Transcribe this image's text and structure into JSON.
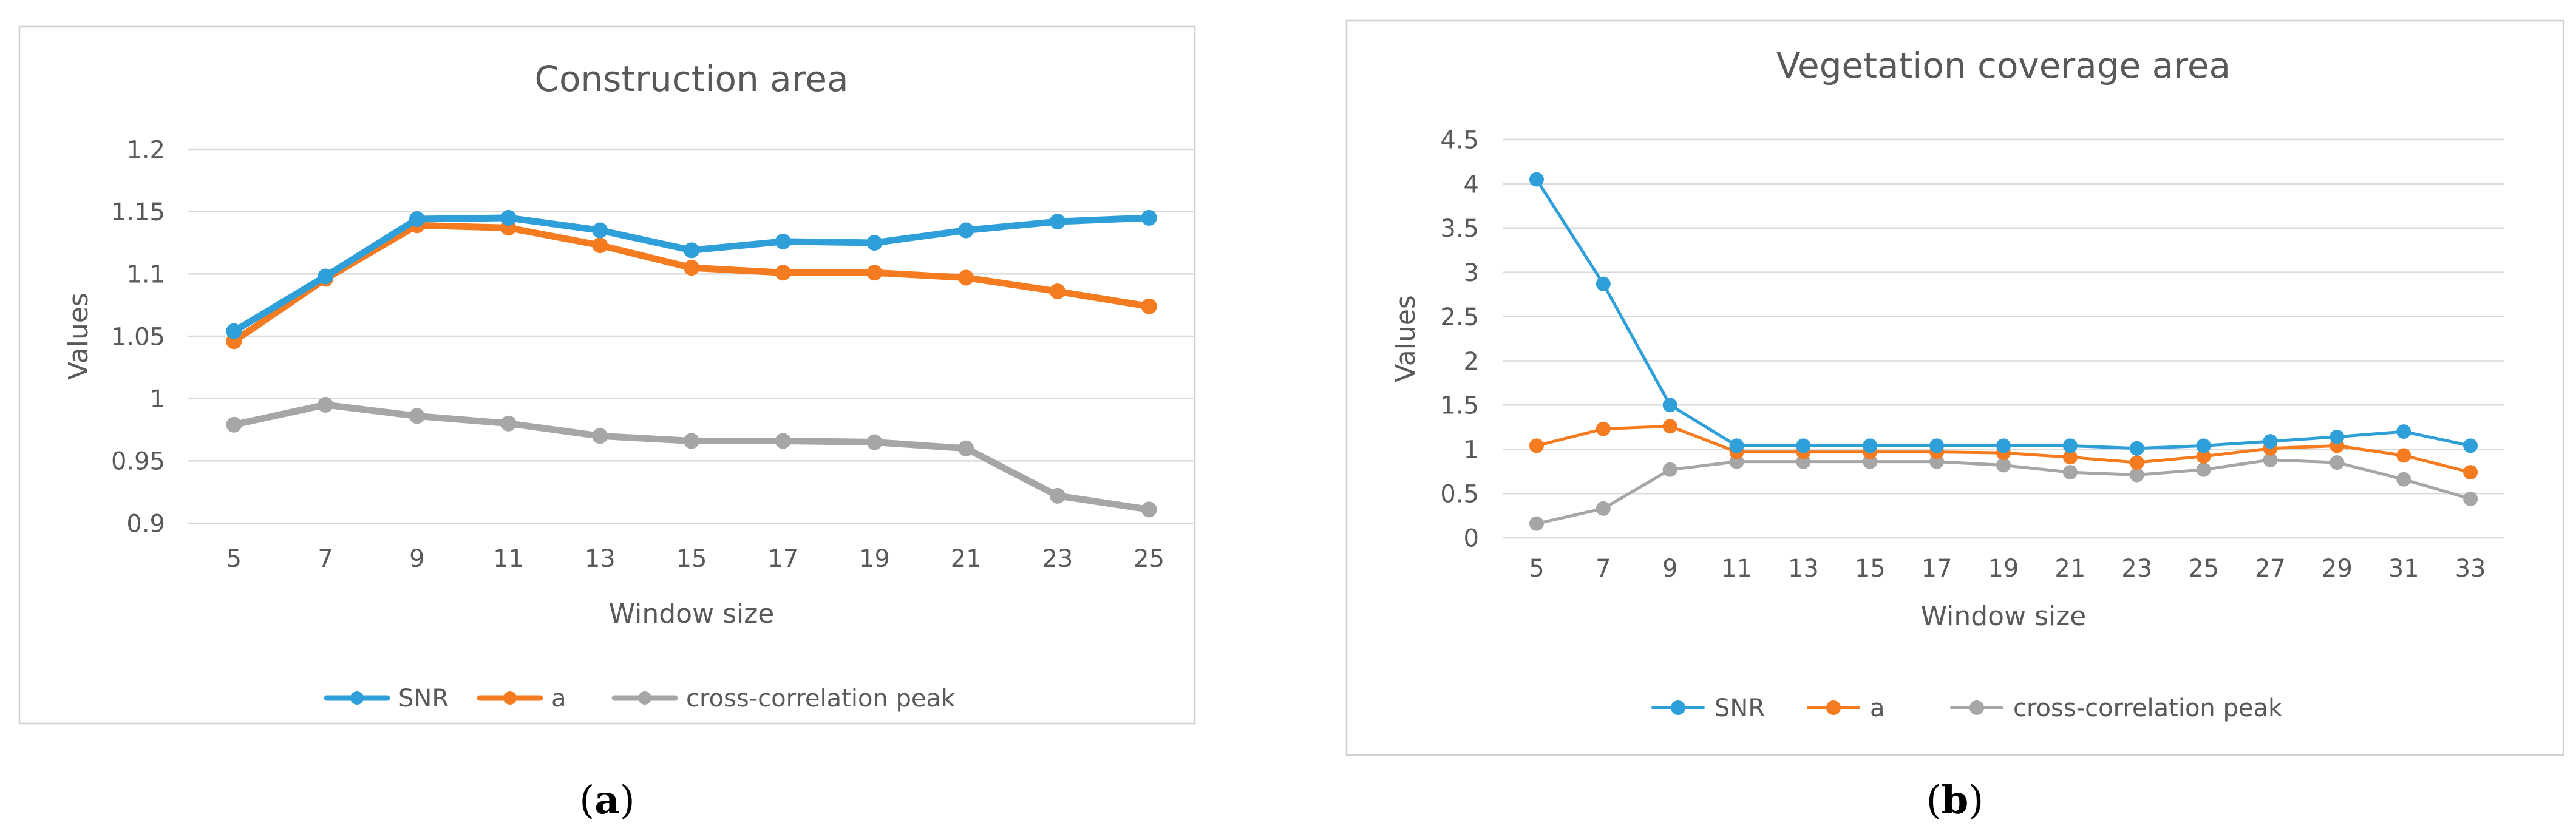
{
  "colors": {
    "snr": "#2e9fd8",
    "a": "#f47b20",
    "ccp": "#a6a6a6",
    "grid": "#d9d9d9",
    "frame": "#d0d0d0",
    "text": "#595959"
  },
  "chart_data": [
    {
      "type": "line",
      "title": "Construction area",
      "xlabel": "Window size",
      "ylabel": "Values",
      "caption": {
        "pre": "(",
        "letter": "a",
        "post": ")"
      },
      "categories": [
        "5",
        "7",
        "9",
        "11",
        "13",
        "15",
        "17",
        "19",
        "21",
        "23",
        "25"
      ],
      "ylim": [
        0.9,
        1.2
      ],
      "yticks": [
        0.9,
        0.95,
        1,
        1.05,
        1.1,
        1.15,
        1.2
      ],
      "ytick_labels": [
        "0.9",
        "0.95",
        "1",
        "1.05",
        "1.1",
        "1.15",
        "1.2"
      ],
      "grid": true,
      "legend": "bottom",
      "series": [
        {
          "name": "SNR",
          "color_key": "snr",
          "values": [
            1.054,
            1.098,
            1.144,
            1.145,
            1.135,
            1.119,
            1.126,
            1.125,
            1.135,
            1.142,
            1.145
          ]
        },
        {
          "name": "a",
          "color_key": "a",
          "values": [
            1.046,
            1.096,
            1.139,
            1.137,
            1.123,
            1.105,
            1.101,
            1.101,
            1.097,
            1.086,
            1.074
          ]
        },
        {
          "name": "cross-correlation peak",
          "color_key": "ccp",
          "values": [
            0.979,
            0.995,
            0.986,
            0.98,
            0.97,
            0.966,
            0.966,
            0.965,
            0.96,
            0.922,
            0.911
          ]
        }
      ]
    },
    {
      "type": "line",
      "title": "Vegetation coverage area",
      "xlabel": "Window size",
      "ylabel": "Values",
      "caption": {
        "pre": "(",
        "letter": "b",
        "post": ")"
      },
      "categories": [
        "5",
        "7",
        "9",
        "11",
        "13",
        "15",
        "17",
        "19",
        "21",
        "23",
        "25",
        "27",
        "29",
        "31",
        "33"
      ],
      "ylim": [
        0,
        4.5
      ],
      "yticks": [
        0,
        0.5,
        1,
        1.5,
        2,
        2.5,
        3,
        3.5,
        4,
        4.5
      ],
      "ytick_labels": [
        "0",
        "0.5",
        "1",
        "1.5",
        "2",
        "2.5",
        "3",
        "3.5",
        "4",
        "4.5"
      ],
      "grid": true,
      "legend": "bottom",
      "series": [
        {
          "name": "SNR",
          "color_key": "snr",
          "values": [
            4.05,
            2.87,
            1.5,
            1.04,
            1.04,
            1.04,
            1.04,
            1.04,
            1.04,
            1.01,
            1.04,
            1.09,
            1.14,
            1.2,
            1.04
          ]
        },
        {
          "name": "a",
          "color_key": "a",
          "values": [
            1.04,
            1.23,
            1.26,
            0.97,
            0.97,
            0.97,
            0.97,
            0.96,
            0.91,
            0.85,
            0.92,
            1.01,
            1.04,
            0.93,
            0.74
          ]
        },
        {
          "name": "cross-correlation peak",
          "color_key": "ccp",
          "values": [
            0.16,
            0.33,
            0.77,
            0.86,
            0.86,
            0.86,
            0.86,
            0.82,
            0.74,
            0.71,
            0.77,
            0.88,
            0.85,
            0.66,
            0.44
          ]
        }
      ]
    }
  ]
}
